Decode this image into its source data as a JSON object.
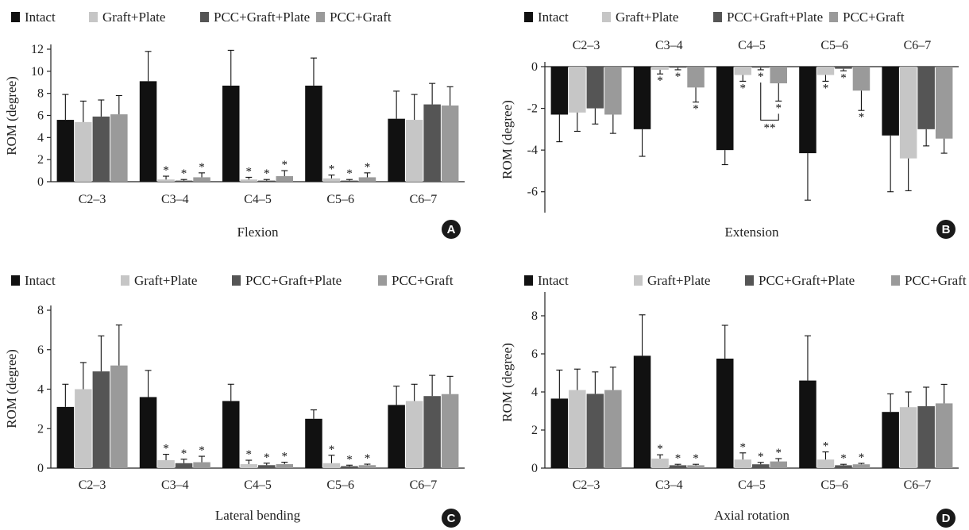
{
  "colors": {
    "Intact": "#111111",
    "Graft+Plate": "#c6c6c6",
    "PCC+Graft+Plate": "#555555",
    "PCC+Graft": "#9a9a9a"
  },
  "chart_data": [
    {
      "type": "bar",
      "panel": "A",
      "title": "Flexion",
      "xlabel": "Flexion",
      "ylabel": "ROM (degree)",
      "ylim": [
        0,
        12
      ],
      "yticks": [
        0,
        2,
        4,
        6,
        8,
        10,
        12
      ],
      "legend": "top",
      "categories": [
        "C2–3",
        "C3–4",
        "C4–5",
        "C5–6",
        "C6–7"
      ],
      "series": [
        {
          "name": "Intact",
          "values": [
            5.6,
            9.1,
            8.7,
            8.7,
            5.7
          ],
          "errors": [
            2.3,
            2.7,
            3.2,
            2.5,
            2.5
          ],
          "stars": [
            "",
            "",
            "",
            "",
            ""
          ]
        },
        {
          "name": "Graft+Plate",
          "values": [
            5.4,
            0.2,
            0.2,
            0.3,
            5.6
          ],
          "errors": [
            1.9,
            0.3,
            0.2,
            0.3,
            2.3
          ],
          "stars": [
            "",
            "*",
            "*",
            "*",
            ""
          ]
        },
        {
          "name": "PCC+Graft+Plate",
          "values": [
            5.9,
            0.1,
            0.1,
            0.1,
            7.0
          ],
          "errors": [
            1.5,
            0.1,
            0.1,
            0.1,
            1.9
          ],
          "stars": [
            "",
            "*",
            "*",
            "*",
            ""
          ]
        },
        {
          "name": "PCC+Graft",
          "values": [
            6.1,
            0.4,
            0.5,
            0.4,
            6.9
          ],
          "errors": [
            1.7,
            0.4,
            0.5,
            0.4,
            1.7
          ],
          "stars": [
            "",
            "*",
            "*",
            "*",
            ""
          ]
        }
      ],
      "annotations": []
    },
    {
      "type": "bar",
      "panel": "B",
      "title": "Extension",
      "xlabel": "Extension",
      "ylabel": "ROM (degree)",
      "ylim": [
        -7,
        0
      ],
      "yticks": [
        -6,
        -4,
        -2,
        0
      ],
      "legend": "top",
      "categories": [
        "C2–3",
        "C3–4",
        "C4–5",
        "C5–6",
        "C6–7"
      ],
      "series": [
        {
          "name": "Intact",
          "values": [
            -2.3,
            -3.0,
            -4.0,
            -4.15,
            -3.3
          ],
          "errors": [
            1.3,
            1.3,
            0.7,
            2.25,
            2.7
          ],
          "stars": [
            "",
            "",
            "",
            "",
            ""
          ]
        },
        {
          "name": "Graft+Plate",
          "values": [
            -2.2,
            -0.15,
            -0.4,
            -0.4,
            -4.4
          ],
          "errors": [
            0.9,
            0.2,
            0.3,
            0.3,
            1.55
          ],
          "stars": [
            "",
            "*",
            "*",
            "*",
            ""
          ]
        },
        {
          "name": "PCC+Graft+Plate",
          "values": [
            -2.0,
            -0.05,
            -0.05,
            -0.1,
            -3.0
          ],
          "errors": [
            0.75,
            0.1,
            0.1,
            0.1,
            0.8
          ],
          "stars": [
            "",
            "*",
            "*",
            "*",
            ""
          ]
        },
        {
          "name": "PCC+Graft",
          "values": [
            -2.3,
            -1.0,
            -0.8,
            -1.15,
            -3.45
          ],
          "errors": [
            0.9,
            0.7,
            0.85,
            0.95,
            0.7
          ],
          "stars": [
            "",
            "*",
            "*",
            "*",
            ""
          ]
        }
      ],
      "annotations": [
        {
          "category": 2,
          "from_series": 2,
          "to_series": 3,
          "label": "**"
        }
      ]
    },
    {
      "type": "bar",
      "panel": "C",
      "title": "Lateral bending",
      "xlabel": "Lateral bending",
      "ylabel": "ROM (degree)",
      "ylim": [
        0,
        8
      ],
      "yticks": [
        0,
        2,
        4,
        6,
        8
      ],
      "legend": "top",
      "categories": [
        "C2–3",
        "C3–4",
        "C4–5",
        "C5–6",
        "C6–7"
      ],
      "series": [
        {
          "name": "Intact",
          "values": [
            3.1,
            3.6,
            3.4,
            2.5,
            3.2
          ],
          "errors": [
            1.15,
            1.35,
            0.85,
            0.45,
            0.95
          ],
          "stars": [
            "",
            "",
            "",
            "",
            ""
          ]
        },
        {
          "name": "Graft+Plate",
          "values": [
            4.0,
            0.4,
            0.2,
            0.25,
            3.4
          ],
          "errors": [
            1.35,
            0.3,
            0.2,
            0.4,
            0.85
          ],
          "stars": [
            "",
            "*",
            "*",
            "*",
            ""
          ]
        },
        {
          "name": "PCC+Graft+Plate",
          "values": [
            4.9,
            0.25,
            0.15,
            0.1,
            3.65
          ],
          "errors": [
            1.8,
            0.2,
            0.1,
            0.05,
            1.05
          ],
          "stars": [
            "",
            "*",
            "*",
            "*",
            ""
          ]
        },
        {
          "name": "PCC+Graft",
          "values": [
            5.2,
            0.3,
            0.2,
            0.15,
            3.75
          ],
          "errors": [
            2.05,
            0.3,
            0.1,
            0.05,
            0.9
          ],
          "stars": [
            "",
            "*",
            "*",
            "*",
            ""
          ]
        }
      ],
      "annotations": []
    },
    {
      "type": "bar",
      "panel": "D",
      "title": "Axial rotation",
      "xlabel": "Axial rotation",
      "ylabel": "ROM (degree)",
      "ylim": [
        0,
        9
      ],
      "yticks": [
        0,
        2,
        4,
        6,
        8
      ],
      "legend": "top",
      "categories": [
        "C2–3",
        "C3–4",
        "C4–5",
        "C5–6",
        "C6–7"
      ],
      "series": [
        {
          "name": "Intact",
          "values": [
            3.65,
            5.9,
            5.75,
            4.6,
            2.95
          ],
          "errors": [
            1.5,
            2.15,
            1.75,
            2.35,
            0.95
          ],
          "stars": [
            "",
            "",
            "",
            "",
            ""
          ]
        },
        {
          "name": "Graft+Plate",
          "values": [
            4.1,
            0.5,
            0.45,
            0.45,
            3.2
          ],
          "errors": [
            1.1,
            0.2,
            0.35,
            0.4,
            0.8
          ],
          "stars": [
            "",
            "*",
            "*",
            "*",
            ""
          ]
        },
        {
          "name": "PCC+Graft+Plate",
          "values": [
            3.9,
            0.15,
            0.2,
            0.15,
            3.25
          ],
          "errors": [
            1.15,
            0.05,
            0.1,
            0.05,
            1.0
          ],
          "stars": [
            "",
            "*",
            "*",
            "*",
            ""
          ]
        },
        {
          "name": "PCC+Graft",
          "values": [
            4.1,
            0.15,
            0.35,
            0.2,
            3.4
          ],
          "errors": [
            1.2,
            0.05,
            0.15,
            0.05,
            1.0
          ],
          "stars": [
            "",
            "*",
            "*",
            "*",
            ""
          ]
        }
      ],
      "annotations": []
    }
  ]
}
